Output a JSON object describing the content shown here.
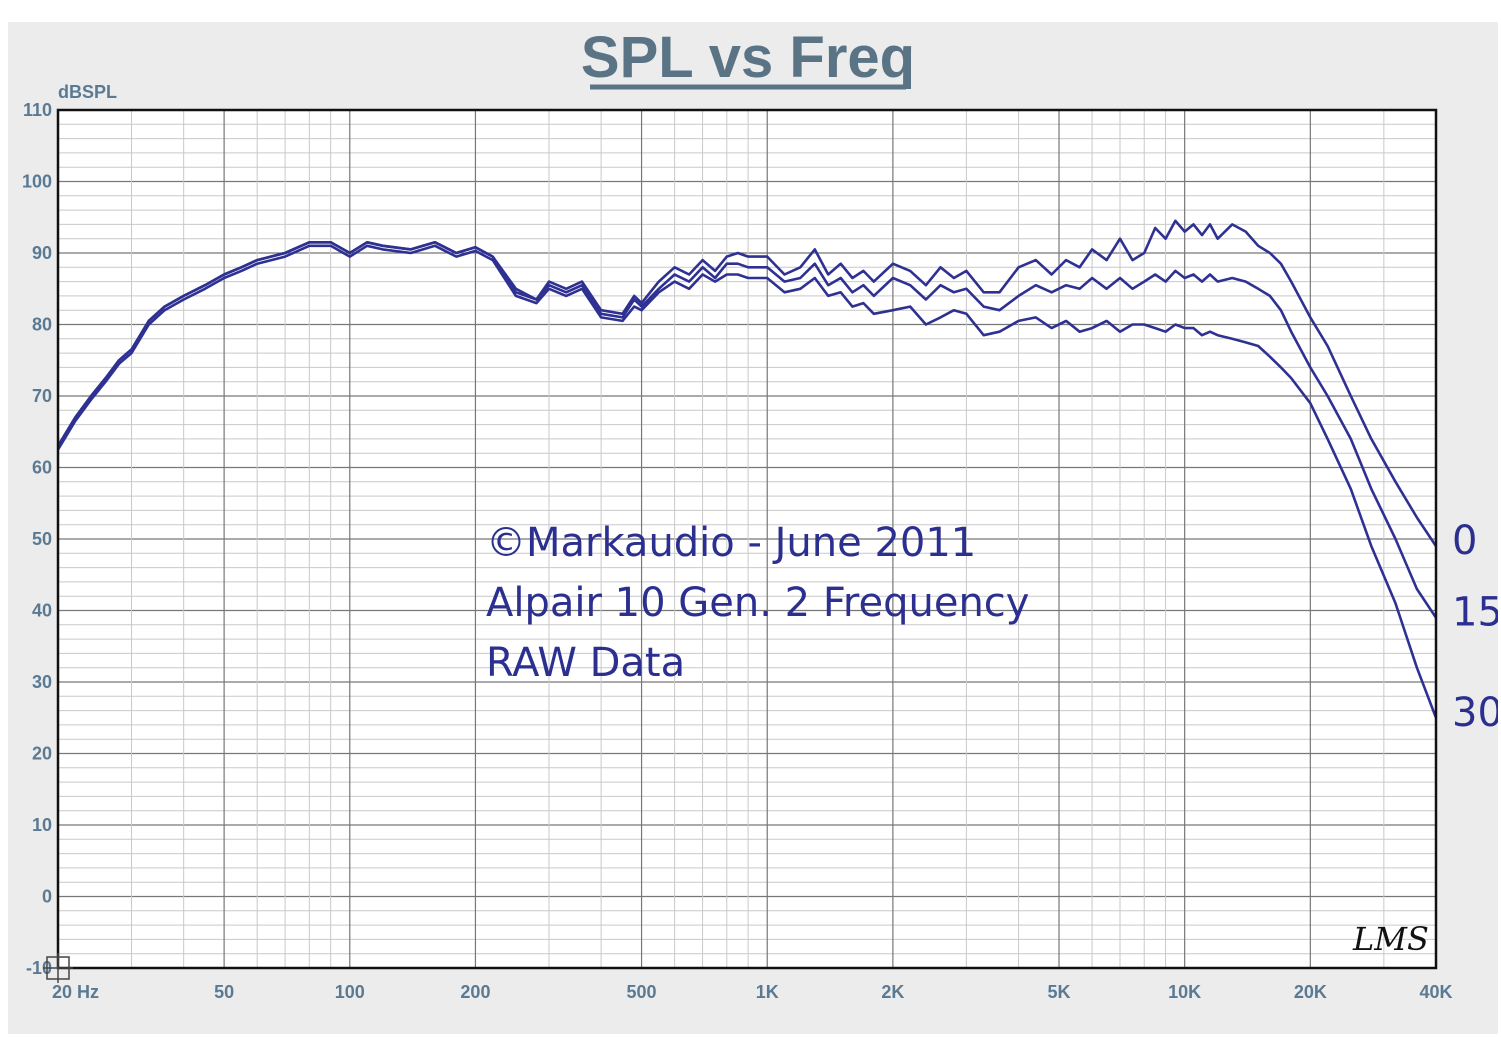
{
  "chart_data": {
    "type": "line",
    "title": "SPL vs Freq",
    "ylabel": "dBSPL",
    "xlabel": "",
    "x_scale": "log",
    "xlim": [
      20,
      40000
    ],
    "ylim": [
      -10,
      110
    ],
    "grid": true,
    "yticks": [
      110,
      100,
      90,
      80,
      70,
      60,
      50,
      40,
      30,
      20,
      10,
      0,
      -10
    ],
    "xticks": [
      {
        "value": 20,
        "label": "20 Hz"
      },
      {
        "value": 50,
        "label": "50"
      },
      {
        "value": 100,
        "label": "100"
      },
      {
        "value": 200,
        "label": "200"
      },
      {
        "value": 500,
        "label": "500"
      },
      {
        "value": 1000,
        "label": "1K"
      },
      {
        "value": 2000,
        "label": "2K"
      },
      {
        "value": 5000,
        "label": "5K"
      },
      {
        "value": 10000,
        "label": "10K"
      },
      {
        "value": 20000,
        "label": "20K"
      },
      {
        "value": 40000,
        "label": "40K"
      }
    ],
    "annotation_lines": [
      "©Markaudio - June 2011",
      "Alpair 10 Gen. 2 Frequency",
      "RAW Data"
    ],
    "watermark": "LMS",
    "line_color": "#2e3192",
    "series": [
      {
        "name": "0",
        "x": [
          20,
          22,
          24,
          26,
          28,
          30,
          33,
          36,
          40,
          45,
          50,
          55,
          60,
          70,
          80,
          90,
          100,
          110,
          120,
          140,
          160,
          180,
          200,
          220,
          250,
          280,
          300,
          330,
          360,
          400,
          450,
          480,
          500,
          550,
          600,
          650,
          700,
          750,
          800,
          850,
          900,
          1000,
          1100,
          1200,
          1300,
          1400,
          1500,
          1600,
          1700,
          1800,
          2000,
          2200,
          2400,
          2600,
          2800,
          3000,
          3300,
          3600,
          4000,
          4400,
          4800,
          5200,
          5600,
          6000,
          6500,
          7000,
          7500,
          8000,
          8500,
          9000,
          9500,
          10000,
          10500,
          11000,
          11500,
          12000,
          13000,
          14000,
          15000,
          16000,
          17000,
          18000,
          20000,
          22000,
          25000,
          28000,
          32000,
          36000,
          40000
        ],
        "y": [
          63,
          67,
          70,
          72.5,
          75,
          76.5,
          80.5,
          82.5,
          84,
          85.5,
          87,
          88,
          89,
          90,
          91.5,
          91.5,
          90,
          91.5,
          91,
          90.5,
          91.5,
          90,
          90.8,
          89.5,
          85,
          83.5,
          86,
          85,
          86,
          82,
          81.5,
          84,
          83,
          86,
          88,
          87,
          89,
          87.5,
          89.5,
          90,
          89.5,
          89.5,
          87,
          88,
          90.5,
          87,
          88.5,
          86.5,
          87.5,
          86,
          88.5,
          87.5,
          85.5,
          88,
          86.5,
          87.5,
          84.5,
          84.5,
          88,
          89,
          87,
          89,
          88,
          90.5,
          89,
          92,
          89,
          90,
          93.5,
          92,
          94.5,
          93,
          94,
          92.5,
          94,
          92,
          94,
          93,
          91,
          90,
          88.5,
          86,
          81,
          77,
          70,
          64,
          58,
          53,
          49
        ]
      },
      {
        "name": "15",
        "x": [
          20,
          22,
          24,
          26,
          28,
          30,
          33,
          36,
          40,
          45,
          50,
          55,
          60,
          70,
          80,
          90,
          100,
          110,
          120,
          140,
          160,
          180,
          200,
          220,
          250,
          280,
          300,
          330,
          360,
          400,
          450,
          480,
          500,
          550,
          600,
          650,
          700,
          750,
          800,
          850,
          900,
          1000,
          1100,
          1200,
          1300,
          1400,
          1500,
          1600,
          1700,
          1800,
          2000,
          2200,
          2400,
          2600,
          2800,
          3000,
          3300,
          3600,
          4000,
          4400,
          4800,
          5200,
          5600,
          6000,
          6500,
          7000,
          7500,
          8000,
          8500,
          9000,
          9500,
          10000,
          10500,
          11000,
          11500,
          12000,
          13000,
          14000,
          15000,
          16000,
          17000,
          18000,
          20000,
          22000,
          25000,
          28000,
          32000,
          36000,
          40000
        ],
        "y": [
          63,
          67,
          70,
          72.5,
          75,
          76.5,
          80.5,
          82.5,
          84,
          85.5,
          87,
          88,
          89,
          90,
          91.5,
          91.5,
          90,
          91.5,
          91,
          90.5,
          91.5,
          90,
          90.8,
          89.5,
          84.5,
          83.5,
          85.5,
          84.5,
          85.5,
          81.5,
          81,
          83.5,
          82.5,
          85,
          87,
          86,
          88,
          86.5,
          88.5,
          88.5,
          88,
          88,
          86,
          86.5,
          88.5,
          85.5,
          86.5,
          84.5,
          85.5,
          84,
          86.5,
          85.5,
          83.5,
          85.5,
          84.5,
          85,
          82.5,
          82,
          84,
          85.5,
          84.5,
          85.5,
          85,
          86.5,
          85,
          86.5,
          85,
          86,
          87,
          86,
          87.5,
          86.5,
          87,
          86,
          87,
          86,
          86.5,
          86,
          85,
          84,
          82,
          79,
          74,
          70,
          64,
          57,
          50,
          43,
          39
        ]
      },
      {
        "name": "30",
        "x": [
          20,
          22,
          24,
          26,
          28,
          30,
          33,
          36,
          40,
          45,
          50,
          55,
          60,
          70,
          80,
          90,
          100,
          110,
          120,
          140,
          160,
          180,
          200,
          220,
          250,
          280,
          300,
          330,
          360,
          400,
          450,
          480,
          500,
          550,
          600,
          650,
          700,
          750,
          800,
          850,
          900,
          1000,
          1100,
          1200,
          1300,
          1400,
          1500,
          1600,
          1700,
          1800,
          2000,
          2200,
          2400,
          2600,
          2800,
          3000,
          3300,
          3600,
          4000,
          4400,
          4800,
          5200,
          5600,
          6000,
          6500,
          7000,
          7500,
          8000,
          8500,
          9000,
          9500,
          10000,
          10500,
          11000,
          11500,
          12000,
          13000,
          14000,
          15000,
          16000,
          17000,
          18000,
          20000,
          22000,
          25000,
          28000,
          32000,
          36000,
          40000
        ],
        "y": [
          62.5,
          66.5,
          69.5,
          72,
          74.5,
          76,
          80,
          82,
          83.5,
          85,
          86.5,
          87.5,
          88.5,
          89.5,
          91,
          91,
          89.5,
          91,
          90.5,
          90,
          91,
          89.5,
          90.3,
          89,
          84,
          83,
          85,
          84,
          85,
          81,
          80.5,
          82.5,
          82,
          84.5,
          86,
          85,
          87,
          86,
          87,
          87,
          86.5,
          86.5,
          84.5,
          85,
          86.5,
          84,
          84.5,
          82.5,
          83,
          81.5,
          82,
          82.5,
          80,
          81,
          82,
          81.5,
          78.5,
          79,
          80.5,
          81,
          79.5,
          80.5,
          79,
          79.5,
          80.5,
          79,
          80,
          80,
          79.5,
          79,
          80,
          79.5,
          79.5,
          78.5,
          79,
          78.5,
          78,
          77.5,
          77,
          75.5,
          74,
          72.5,
          69,
          64,
          57,
          49,
          41,
          32,
          25
        ]
      }
    ]
  }
}
